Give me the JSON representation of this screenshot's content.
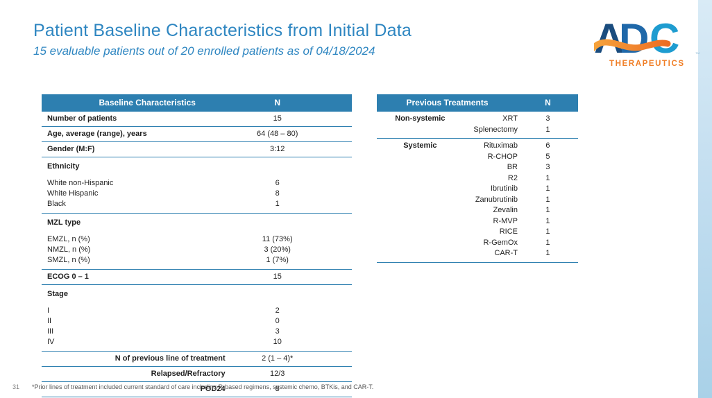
{
  "slide": {
    "title": "Patient Baseline Characteristics from Initial Data",
    "subtitle": "15 evaluable patients out of 20 enrolled patients as of 04/18/2024",
    "page_number": "31",
    "footnote": "*Prior lines of treatment included current standard of care including R-based regimens, systemic chemo, BTKis, and CAR-T.",
    "colors": {
      "accent_blue": "#2d7fb0",
      "title_blue": "#2e86c1",
      "logo_orange": "#f07e26",
      "logo_navy": "#1a4c7e",
      "logo_mid_blue": "#1f68a9",
      "logo_light_blue": "#1e9cd0",
      "side_strip_blue": "#a9d1e8"
    }
  },
  "logo": {
    "letter_a": "A",
    "letter_d": "D",
    "letter_c": "C",
    "subtext": "THERAPEUTICS",
    "tm": "TM"
  },
  "baseline_table": {
    "header": {
      "label": "Baseline Characteristics",
      "n": "N"
    },
    "rows": [
      {
        "type": "simple",
        "label": "Number of patients",
        "value": "15"
      },
      {
        "type": "simple",
        "label": "Age, average (range), years",
        "value": "64 (48 – 80)"
      },
      {
        "type": "simple",
        "label": "Gender (M:F)",
        "value": "3:12"
      },
      {
        "type": "group",
        "label": "Ethnicity",
        "items": [
          {
            "label": "White non-Hispanic",
            "value": "6"
          },
          {
            "label": "White Hispanic",
            "value": "8"
          },
          {
            "label": "Black",
            "value": "1"
          }
        ]
      },
      {
        "type": "group",
        "label": "MZL type",
        "items": [
          {
            "label": "EMZL, n (%)",
            "value": "11 (73%)"
          },
          {
            "label": "NMZL, n (%)",
            "value": "3 (20%)"
          },
          {
            "label": "SMZL, n (%)",
            "value": "1 (7%)"
          }
        ]
      },
      {
        "type": "simple",
        "label": "ECOG 0 – 1",
        "value": "15"
      },
      {
        "type": "group",
        "label": "Stage",
        "items": [
          {
            "label": "I",
            "value": "2"
          },
          {
            "label": "II",
            "value": "0"
          },
          {
            "label": "III",
            "value": "3"
          },
          {
            "label": "IV",
            "value": "10"
          }
        ]
      },
      {
        "type": "right",
        "label": "N of previous line of treatment",
        "value": "2 (1 – 4)*"
      },
      {
        "type": "right",
        "label": "Relapsed/Refractory",
        "value": "12/3"
      },
      {
        "type": "right",
        "label": "POD24",
        "value": "8"
      }
    ]
  },
  "treatments_table": {
    "header": {
      "label": "Previous Treatments",
      "n": "N"
    },
    "groups": [
      {
        "category": "Non-systemic",
        "items": [
          {
            "name": "XRT",
            "value": "3"
          },
          {
            "name": "Splenectomy",
            "value": "1"
          }
        ]
      },
      {
        "category": "Systemic",
        "items": [
          {
            "name": "Rituximab",
            "value": "6"
          },
          {
            "name": "R-CHOP",
            "value": "5"
          },
          {
            "name": "BR",
            "value": "3"
          },
          {
            "name": "R2",
            "value": "1"
          },
          {
            "name": "Ibrutinib",
            "value": "1"
          },
          {
            "name": "Zanubrutinib",
            "value": "1"
          },
          {
            "name": "Zevalin",
            "value": "1"
          },
          {
            "name": "R-MVP",
            "value": "1"
          },
          {
            "name": "RICE",
            "value": "1"
          },
          {
            "name": "R-GemOx",
            "value": "1"
          },
          {
            "name": "CAR-T",
            "value": "1"
          }
        ]
      }
    ]
  }
}
